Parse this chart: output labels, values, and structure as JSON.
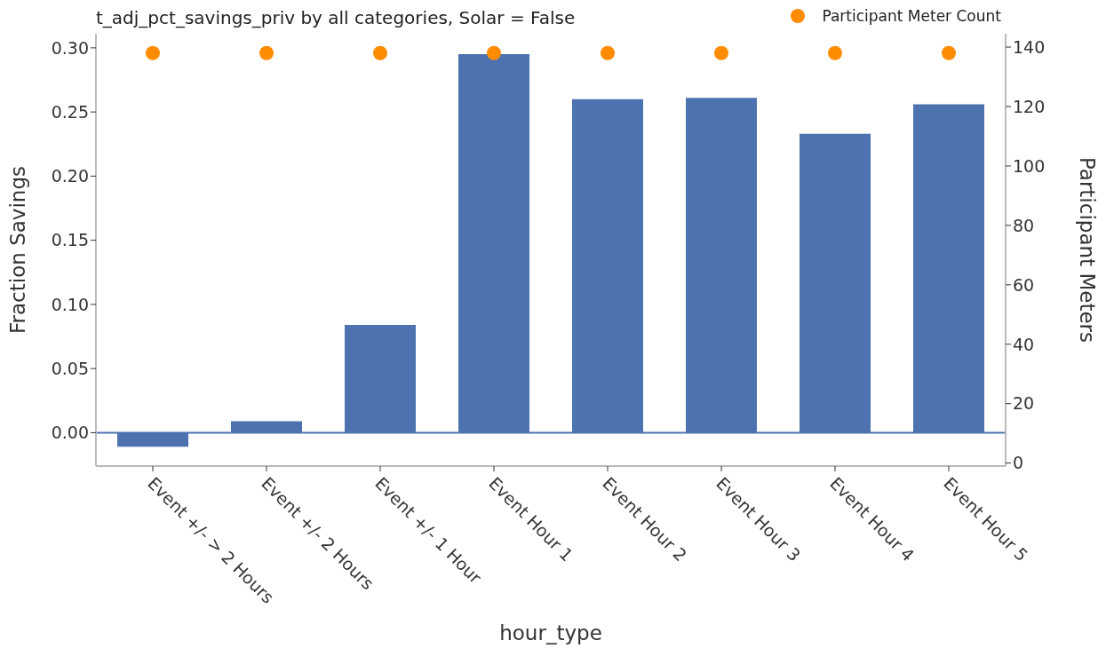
{
  "chart_data": {
    "type": "bar",
    "title": "t_adj_pct_savings_priv by all categories, Solar = False",
    "xlabel": "hour_type",
    "ylabel": "Fraction Savings",
    "y2label": "Participant Meters",
    "categories": [
      "Event +/- > 2 Hours",
      "Event +/- 2 Hours",
      "Event +/- 1 Hour",
      "Event Hour 1",
      "Event Hour 2",
      "Event Hour 3",
      "Event Hour 4",
      "Event Hour 5"
    ],
    "series": [
      {
        "color": "#4c72b0",
        "values": [
          -0.011,
          0.009,
          0.084,
          0.295,
          0.26,
          0.261,
          0.233,
          0.256
        ]
      },
      {
        "type": "scatter",
        "name": "Participant Meter Count",
        "color": "#ff8c00",
        "axis": "y2",
        "values": [
          138,
          138,
          138,
          138,
          138,
          138,
          138,
          138
        ]
      }
    ],
    "ylim": [
      -0.026,
      0.311
    ],
    "yticks": [
      {
        "value": 0,
        "label": "0.00"
      },
      {
        "value": 0.05,
        "label": "0.05"
      },
      {
        "value": 0.1,
        "label": "0.10"
      },
      {
        "value": 0.15,
        "label": "0.15"
      },
      {
        "value": 0.2,
        "label": "0.20"
      },
      {
        "value": 0.25,
        "label": "0.25"
      },
      {
        "value": 0.3,
        "label": "0.30"
      }
    ],
    "y2lim": [
      -1,
      144.5
    ],
    "y2ticks": [
      0,
      20,
      40,
      60,
      80,
      100,
      120,
      140
    ],
    "ref_lines": [
      {
        "axis": "y",
        "value": 0,
        "color": "#4c72b0"
      }
    ],
    "legend": "top right",
    "marker": "circle"
  }
}
